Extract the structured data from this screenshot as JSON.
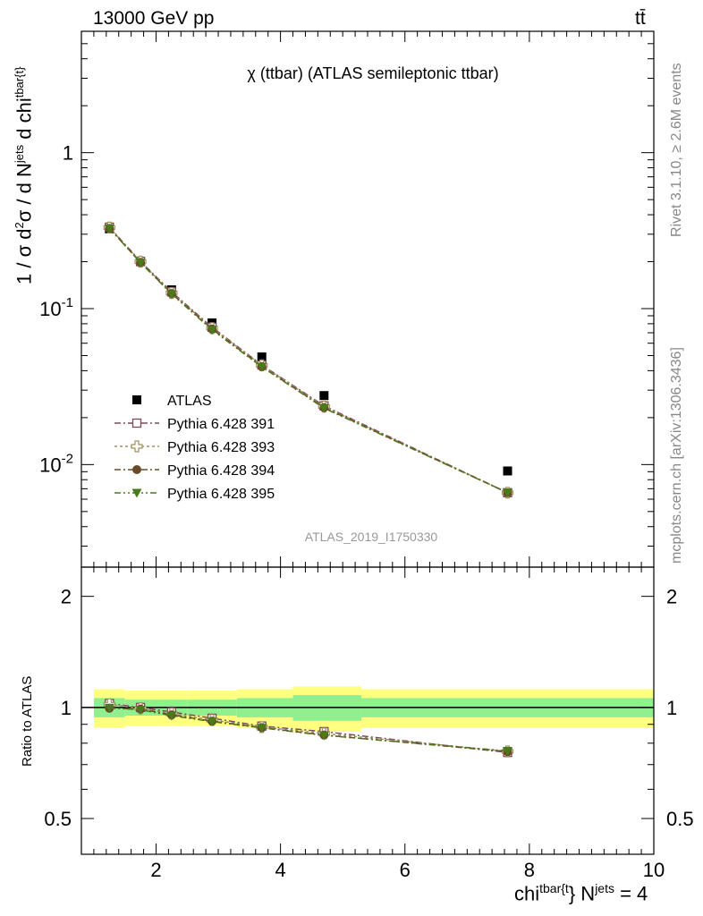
{
  "header": {
    "energy_label": "13000 GeV pp",
    "process_label": "tt̄"
  },
  "side_text": {
    "rivet": "Rivet 3.1.10, ≥ 2.6M events",
    "mcplots": "mcplots.cern.ch [arXiv:1306.3436]"
  },
  "chart_data": [
    {
      "type": "scatter",
      "panel": "main",
      "title": "χ (ttbar) (ATLAS semileptonic ttbar)",
      "analysis_label": "ATLAS_2019_I1750330",
      "ylabel": "1 / σ d²σ / d N^jets d chi^tbar{t}",
      "yscale": "log",
      "ylim": [
        0.0022,
        6
      ],
      "xlim": [
        0.8,
        10
      ],
      "yticks": [
        {
          "v": 0.01,
          "label": "10^-2"
        },
        {
          "v": 0.1,
          "label": "10^-1"
        },
        {
          "v": 1,
          "label": "1"
        }
      ],
      "legend_position": "left",
      "grid": false,
      "x": [
        1.25,
        1.75,
        2.25,
        2.9,
        3.7,
        4.7,
        7.65
      ],
      "series": [
        {
          "name": "ATLAS",
          "color": "#000000",
          "marker": "filled-square",
          "values": [
            0.325,
            0.2,
            0.132,
            0.081,
            0.049,
            0.0277,
            0.0091
          ]
        },
        {
          "name": "Pythia 6.428 391",
          "color": "#7b4a5e",
          "marker": "open-square",
          "values": [
            0.333,
            0.201,
            0.128,
            0.076,
            0.0435,
            0.0238,
            0.0066
          ]
        },
        {
          "name": "Pythia 6.428 393",
          "color": "#a09060",
          "marker": "open-cross",
          "values": [
            0.331,
            0.2,
            0.126,
            0.075,
            0.0433,
            0.0235,
            0.0066
          ]
        },
        {
          "name": "Pythia 6.428 394",
          "color": "#6b4a2a",
          "marker": "filled-circle",
          "values": [
            0.327,
            0.198,
            0.125,
            0.074,
            0.0425,
            0.0232,
            0.0066
          ]
        },
        {
          "name": "Pythia 6.428 395",
          "color": "#4a7a1a",
          "marker": "filled-triangle-down",
          "values": [
            0.327,
            0.197,
            0.124,
            0.073,
            0.0423,
            0.023,
            0.0066
          ]
        }
      ]
    },
    {
      "type": "scatter",
      "panel": "ratio",
      "ylabel": "Ratio to ATLAS",
      "yscale": "log",
      "ylim": [
        0.4,
        2.4
      ],
      "xlim": [
        0.8,
        10
      ],
      "xlabel": "chi^tbar{t} N^jets = 4",
      "xticks": [
        {
          "v": 2,
          "label": "2"
        },
        {
          "v": 4,
          "label": "4"
        },
        {
          "v": 6,
          "label": "6"
        },
        {
          "v": 8,
          "label": "8"
        },
        {
          "v": 10,
          "label": "10"
        }
      ],
      "yticks": [
        {
          "v": 0.5,
          "label": "0.5"
        },
        {
          "v": 1,
          "label": "1"
        },
        {
          "v": 2,
          "label": "2"
        }
      ],
      "bin_edges": [
        1.0,
        1.5,
        2.0,
        2.5,
        3.3,
        4.2,
        5.3,
        10.0
      ],
      "band_inner": [
        0.06,
        0.05,
        0.05,
        0.05,
        0.06,
        0.08,
        0.06
      ],
      "band_outer": [
        0.12,
        0.11,
        0.11,
        0.11,
        0.12,
        0.14,
        0.12
      ],
      "x": [
        1.25,
        1.75,
        2.25,
        2.9,
        3.7,
        4.7,
        7.65
      ],
      "series": [
        {
          "name": "Pythia 6.428 391",
          "color": "#7b4a5e",
          "marker": "open-square",
          "values": [
            1.025,
            1.0,
            0.972,
            0.935,
            0.89,
            0.86,
            0.755
          ]
        },
        {
          "name": "Pythia 6.428 393",
          "color": "#a09060",
          "marker": "open-cross",
          "values": [
            1.02,
            0.995,
            0.962,
            0.925,
            0.885,
            0.85,
            0.76
          ]
        },
        {
          "name": "Pythia 6.428 394",
          "color": "#6b4a2a",
          "marker": "filled-circle",
          "values": [
            0.995,
            0.99,
            0.955,
            0.918,
            0.882,
            0.842,
            0.758
          ]
        },
        {
          "name": "Pythia 6.428 395",
          "color": "#4a7a1a",
          "marker": "filled-triangle-down",
          "values": [
            0.998,
            0.985,
            0.95,
            0.915,
            0.88,
            0.84,
            0.762
          ]
        }
      ]
    }
  ]
}
